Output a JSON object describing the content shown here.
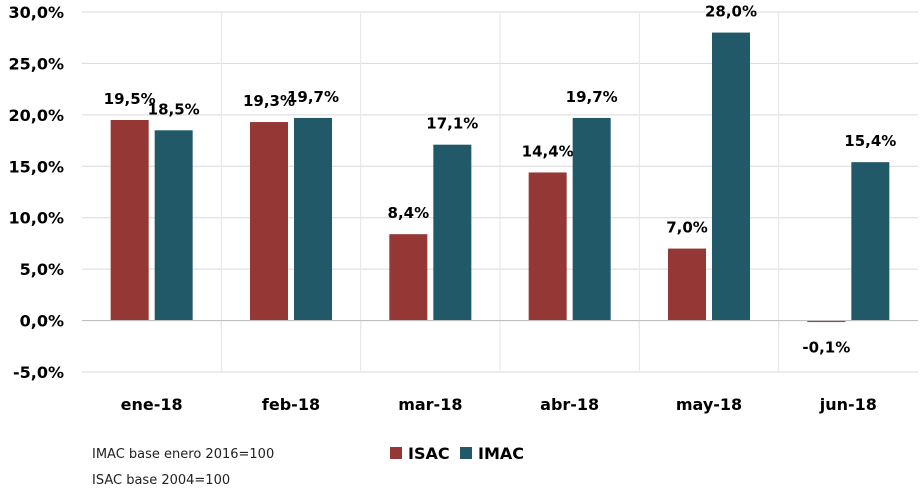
{
  "chart_data": {
    "type": "bar",
    "categories": [
      "ene-18",
      "feb-18",
      "mar-18",
      "abr-18",
      "may-18",
      "jun-18"
    ],
    "series": [
      {
        "name": "ISAC",
        "color": "#953735",
        "values": [
          19.5,
          19.3,
          8.4,
          14.4,
          7.0,
          -0.1
        ],
        "labels": [
          "19,5%",
          "19,3%",
          "8,4%",
          "14,4%",
          "7,0%",
          "-0,1%"
        ]
      },
      {
        "name": "IMAC",
        "color": "#215968",
        "values": [
          18.5,
          19.7,
          17.1,
          19.7,
          28.0,
          15.4
        ],
        "labels": [
          "18,5%",
          "19,7%",
          "17,1%",
          "19,7%",
          "28,0%",
          "15,4%"
        ]
      }
    ],
    "yticks": [
      30,
      25,
      20,
      15,
      10,
      5,
      0,
      -5
    ],
    "ytick_labels": [
      "30,0%",
      "25,0%",
      "20,0%",
      "15,0%",
      "10,0%",
      "5,0%",
      "0,0%",
      "-5,0%"
    ],
    "ylim": [
      -5,
      30
    ],
    "grid": true,
    "legend_position": "bottom-center"
  },
  "notes": [
    "IMAC base enero 2016=100",
    "ISAC base 2004=100"
  ]
}
